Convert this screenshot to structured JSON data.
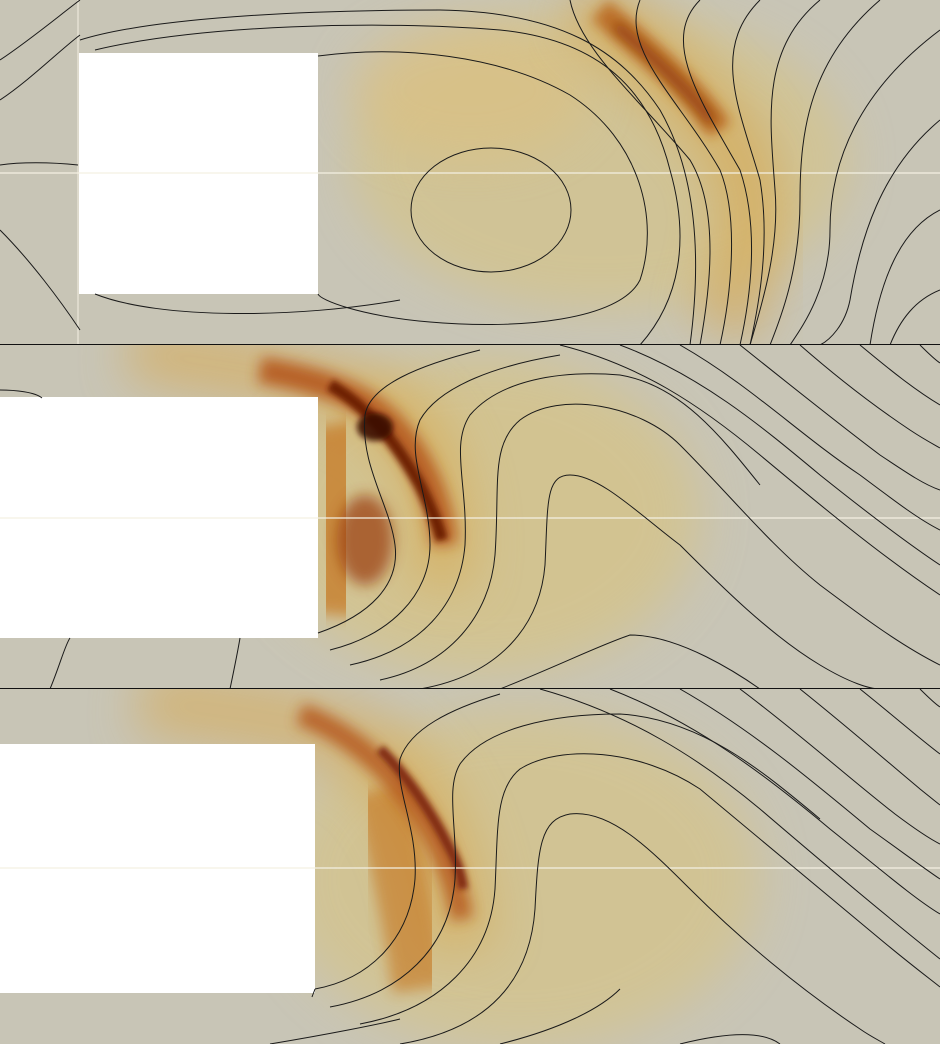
{
  "figure": {
    "panels": [
      {
        "id": "panel-1",
        "obstacle": "white-rectangle",
        "field_peak": "moderate"
      },
      {
        "id": "panel-2",
        "obstacle": "white-rectangle",
        "field_peak": "strong"
      },
      {
        "id": "panel-3",
        "obstacle": "white-rectangle",
        "field_peak": "medium"
      }
    ],
    "colors": {
      "background": "#c8c5b6",
      "field_low": "#d9c27a",
      "field_mid": "#c9852a",
      "field_high": "#9a3a10",
      "field_peak": "#4a0c02",
      "contour": "#1a1a1a",
      "obstacle": "#ffffff",
      "separator": "#111111"
    }
  }
}
